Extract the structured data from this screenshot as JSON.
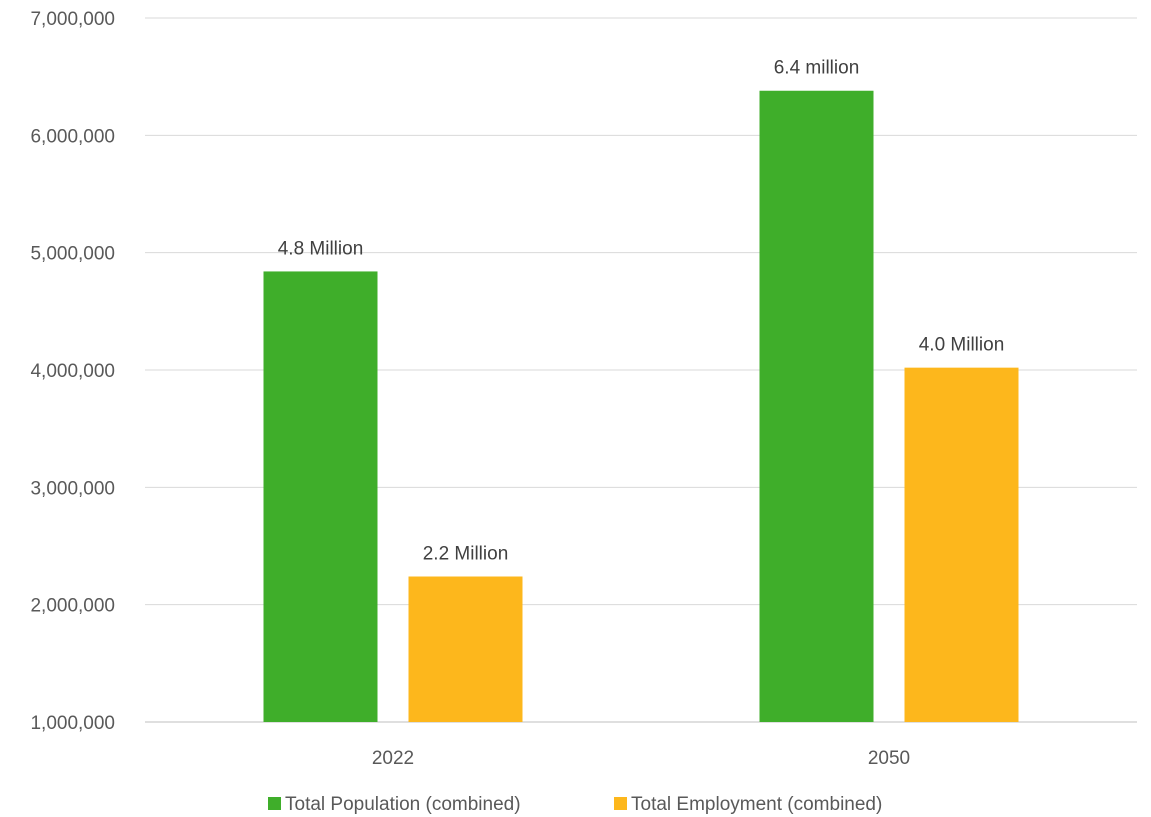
{
  "chart_data": {
    "type": "bar",
    "title": "",
    "xlabel": "",
    "ylabel": "",
    "categories": [
      "2022",
      "2050"
    ],
    "series": [
      {
        "name": "Total Population (combined)",
        "color": "#3fae2a",
        "values": [
          4840000,
          6380000
        ],
        "labels": [
          "4.8 Million",
          "6.4 million"
        ]
      },
      {
        "name": "Total Employment (combined)",
        "color": "#fdb71c",
        "values": [
          2240000,
          4020000
        ],
        "labels": [
          "2.2 Million",
          "4.0 Million"
        ]
      }
    ],
    "ylim": [
      1000000,
      7000000
    ],
    "yticks": [
      1000000,
      2000000,
      3000000,
      4000000,
      5000000,
      6000000,
      7000000
    ],
    "ytick_labels": [
      "1,000,000",
      "2,000,000",
      "3,000,000",
      "4,000,000",
      "5,000,000",
      "6,000,000",
      "7,000,000"
    ],
    "grid": true,
    "legend_position": "bottom"
  }
}
